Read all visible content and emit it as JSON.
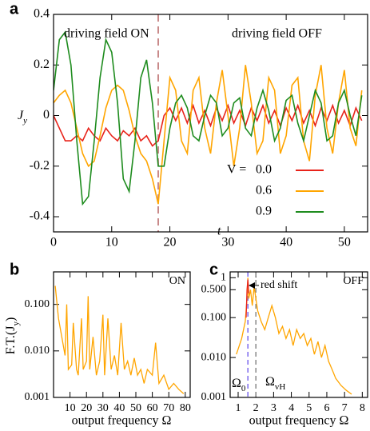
{
  "chart_data": [
    {
      "type": "line",
      "panel_label": "a",
      "ylabel": [
        "J",
        "y"
      ],
      "xlabel": "t",
      "annotations": [
        "driving field ON",
        "driving field OFF"
      ],
      "divider_x": 18,
      "legend_title": "V =",
      "xlim": [
        0,
        54
      ],
      "xticks": [
        0,
        10,
        20,
        30,
        40,
        50
      ],
      "ylim": [
        -0.46,
        0.4
      ],
      "yticks": [
        -0.4,
        -0.2,
        0,
        0.2,
        0.4
      ],
      "x": [
        0,
        1,
        2,
        3,
        4,
        5,
        6,
        7,
        8,
        9,
        10,
        11,
        12,
        13,
        14,
        15,
        16,
        17,
        18,
        19,
        20,
        21,
        22,
        23,
        24,
        25,
        26,
        27,
        28,
        29,
        30,
        31,
        32,
        33,
        34,
        35,
        36,
        37,
        38,
        39,
        40,
        41,
        42,
        43,
        44,
        45,
        46,
        47,
        48,
        49,
        50,
        51,
        52,
        53
      ],
      "series": [
        {
          "name": "0.0",
          "color": "#e8231a",
          "values": [
            0.0,
            -0.05,
            -0.1,
            -0.1,
            -0.08,
            -0.1,
            -0.05,
            -0.08,
            -0.1,
            -0.05,
            -0.08,
            -0.1,
            -0.06,
            -0.08,
            -0.05,
            -0.1,
            -0.08,
            -0.12,
            -0.1,
            0.0,
            0.03,
            -0.02,
            0.03,
            -0.03,
            0.04,
            -0.03,
            0.02,
            -0.04,
            0.03,
            -0.02,
            0.04,
            -0.03,
            0.02,
            -0.04,
            0.03,
            -0.02,
            0.04,
            -0.03,
            0.02,
            -0.04,
            0.03,
            -0.02,
            0.04,
            -0.03,
            0.02,
            -0.04,
            0.03,
            -0.02,
            0.04,
            -0.03,
            0.02,
            -0.04,
            0.03,
            -0.02
          ]
        },
        {
          "name": "0.6",
          "color": "#ffa500",
          "values": [
            0.05,
            0.08,
            0.1,
            0.05,
            -0.05,
            -0.15,
            -0.2,
            -0.18,
            -0.08,
            0.03,
            0.1,
            0.12,
            0.1,
            0.02,
            -0.08,
            -0.15,
            -0.18,
            -0.25,
            -0.35,
            -0.1,
            0.15,
            0.1,
            -0.1,
            -0.15,
            0.1,
            0.15,
            -0.05,
            -0.15,
            0.05,
            0.18,
            0.0,
            -0.2,
            -0.05,
            0.2,
            0.05,
            -0.15,
            -0.1,
            0.15,
            0.1,
            -0.15,
            -0.08,
            0.12,
            0.15,
            -0.1,
            -0.18,
            0.08,
            0.2,
            -0.05,
            -0.15,
            0.05,
            0.18,
            -0.05,
            -0.12,
            0.1
          ]
        },
        {
          "name": "0.9",
          "color": "#1e8c1e",
          "values": [
            0.1,
            0.3,
            0.33,
            0.2,
            -0.1,
            -0.35,
            -0.32,
            -0.1,
            0.15,
            0.3,
            0.25,
            0.05,
            -0.25,
            -0.3,
            -0.1,
            0.15,
            0.22,
            0.05,
            -0.2,
            -0.2,
            -0.05,
            0.05,
            0.08,
            0.03,
            -0.08,
            -0.1,
            0.0,
            0.08,
            0.05,
            -0.08,
            -0.05,
            0.05,
            0.07,
            -0.05,
            -0.08,
            0.03,
            0.1,
            0.02,
            -0.1,
            -0.05,
            0.06,
            0.08,
            -0.03,
            -0.1,
            0.0,
            0.1,
            0.05,
            -0.1,
            -0.08,
            0.05,
            0.1,
            0.0,
            -0.08,
            0.08
          ]
        }
      ]
    },
    {
      "type": "line",
      "panel_label": "b",
      "ylabel": [
        "F.T.(J",
        "y",
        ")"
      ],
      "xlabel": "output frequency Ω",
      "annotations": [
        "ON"
      ],
      "log_y": true,
      "xlim": [
        0,
        83
      ],
      "xticks": [
        10,
        20,
        30,
        40,
        50,
        60,
        70,
        80
      ],
      "ylim": [
        0.001,
        0.5
      ],
      "yticks": [
        {
          "value": 0.001,
          "label": "0.001"
        },
        {
          "value": 0.01,
          "label": "0.010"
        },
        {
          "value": 0.1,
          "label": "0.100"
        }
      ],
      "series": [
        {
          "color": "#ffa500",
          "x": [
            1,
            3,
            5,
            7,
            8,
            9,
            11,
            12,
            14,
            15,
            17,
            18,
            20,
            21,
            22,
            24,
            26,
            28,
            30,
            31,
            33,
            35,
            37,
            39,
            41,
            43,
            45,
            47,
            49,
            51,
            53,
            55,
            57,
            60,
            62,
            64,
            67,
            70,
            73,
            76,
            79
          ],
          "values": [
            0.25,
            0.05,
            0.02,
            0.008,
            0.1,
            0.004,
            0.005,
            0.04,
            0.004,
            0.003,
            0.05,
            0.004,
            0.006,
            0.15,
            0.004,
            0.02,
            0.003,
            0.006,
            0.06,
            0.003,
            0.05,
            0.004,
            0.008,
            0.003,
            0.04,
            0.004,
            0.006,
            0.003,
            0.007,
            0.003,
            0.004,
            0.002,
            0.004,
            0.003,
            0.015,
            0.002,
            0.003,
            0.0015,
            0.002,
            0.0015,
            0.0012
          ]
        }
      ]
    },
    {
      "type": "line",
      "panel_label": "c",
      "xlabel": "output frequency Ω",
      "annotations": [
        "OFF",
        "red shift"
      ],
      "log_y": true,
      "markers": [
        {
          "label": [
            "Ω",
            "0"
          ],
          "x": 1.55,
          "color": "#7b68ee"
        },
        {
          "label": [
            "Ω",
            "vH"
          ],
          "x": 2.0,
          "color": "#888888"
        }
      ],
      "xlim": [
        0.55,
        8.3
      ],
      "xticks": [
        1,
        2,
        3,
        4,
        5,
        6,
        7,
        8
      ],
      "ylim": [
        0.001,
        1.4
      ],
      "yticks": [
        {
          "value": 0.001,
          "label": "0.001"
        },
        {
          "value": 0.01,
          "label": "0.010"
        },
        {
          "value": 0.1,
          "label": "0.100"
        },
        {
          "value": 0.5,
          "label": "0.500"
        },
        1
      ],
      "series": [
        {
          "color": "#ffa500",
          "x": [
            0.9,
            1.2,
            1.4,
            1.5,
            1.55,
            1.6,
            1.7,
            1.8,
            1.9,
            2.0,
            2.1,
            2.3,
            2.5,
            2.7,
            2.9,
            3.1,
            3.3,
            3.5,
            3.7,
            3.9,
            4.1,
            4.3,
            4.5,
            4.7,
            4.9,
            5.1,
            5.3,
            5.5,
            5.7,
            5.9,
            6.1,
            6.3,
            6.5,
            6.8,
            7.1,
            7.4
          ],
          "values": [
            0.012,
            0.03,
            0.08,
            0.3,
            1.0,
            0.3,
            0.5,
            0.2,
            0.6,
            0.3,
            0.15,
            0.08,
            0.05,
            0.1,
            0.2,
            0.1,
            0.04,
            0.06,
            0.03,
            0.05,
            0.02,
            0.05,
            0.03,
            0.04,
            0.02,
            0.03,
            0.012,
            0.025,
            0.01,
            0.02,
            0.008,
            0.005,
            0.003,
            0.002,
            0.0015,
            0.0012
          ]
        },
        {
          "color": "#e8231a",
          "x": [
            1.45,
            1.5,
            1.55,
            1.6
          ],
          "values": [
            0.1,
            0.5,
            0.9,
            0.4
          ]
        }
      ]
    }
  ]
}
